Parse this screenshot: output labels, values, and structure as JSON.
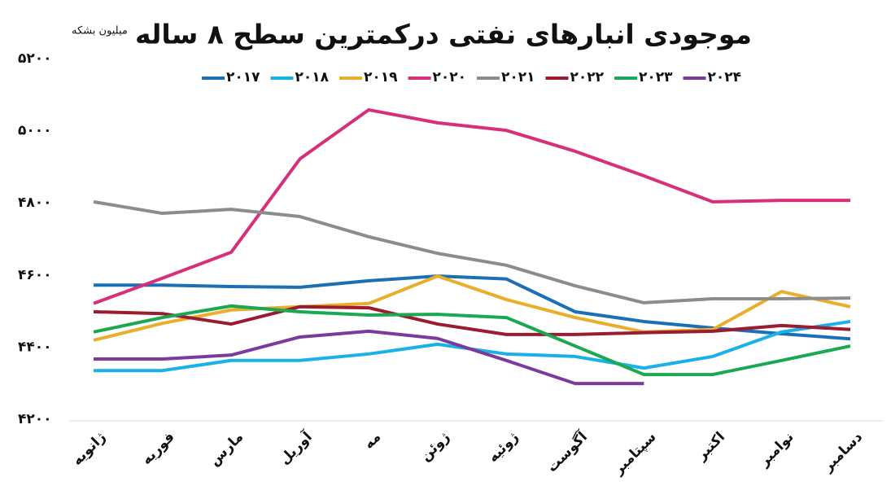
{
  "chart_data": {
    "type": "line",
    "title": "موجودی انبارهای نفتی درکمترین سطح ۸ ساله",
    "y_label": "میلیون بشکه",
    "categories": [
      "ژانویه",
      "فوریه",
      "مارس",
      "آوریل",
      "مه",
      "ژوئن",
      "ژوئیه",
      "آگوست",
      "سپتامبر",
      "اکتبر",
      "نوامبر",
      "دسامبر"
    ],
    "ylim": [
      4200,
      5200
    ],
    "yticks": [
      {
        "value": 4200,
        "label": "۴۲۰۰"
      },
      {
        "value": 4400,
        "label": "۴۴۰۰"
      },
      {
        "value": 4600,
        "label": "۴۶۰۰"
      },
      {
        "value": 4800,
        "label": "۴۸۰۰"
      },
      {
        "value": 5000,
        "label": "۵۰۰۰"
      },
      {
        "value": 5200,
        "label": "۵۲۰۰"
      }
    ],
    "grid": false,
    "legend": "top",
    "series": [
      {
        "name": "۲۰۱۷",
        "color": "#1a6fb5",
        "values": [
          4572,
          4572,
          4568,
          4566,
          4584,
          4597,
          4589,
          4498,
          4471,
          4453,
          4437,
          4423
        ]
      },
      {
        "name": "۲۰۱۸",
        "color": "#1ab0e8",
        "values": [
          4335,
          4335,
          4363,
          4363,
          4381,
          4408,
          4381,
          4374,
          4342,
          4374,
          4442,
          4471
        ]
      },
      {
        "name": "۲۰۱۹",
        "color": "#e9ae2a",
        "values": [
          4419,
          4466,
          4503,
          4512,
          4521,
          4597,
          4532,
          4482,
          4442,
          4449,
          4554,
          4512
        ]
      },
      {
        "name": "۲۰۲۰",
        "color": "#d6307b",
        "values": [
          4521,
          4591,
          4663,
          4922,
          5058,
          5022,
          5001,
          4943,
          4875,
          4803,
          4807,
          4807
        ]
      },
      {
        "name": "۲۰۲۱",
        "color": "#8c8c8c",
        "values": [
          4803,
          4771,
          4782,
          4762,
          4706,
          4660,
          4627,
          4570,
          4523,
          4534,
          4534,
          4536
        ]
      },
      {
        "name": "۲۰۲۲",
        "color": "#9b1b30",
        "values": [
          4498,
          4493,
          4464,
          4512,
          4509,
          4464,
          4435,
          4435,
          4440,
          4444,
          4460,
          4449
        ]
      },
      {
        "name": "۲۰۲۳",
        "color": "#1aa853",
        "values": [
          4442,
          4482,
          4514,
          4498,
          4489,
          4491,
          4482,
          4403,
          4324,
          4324,
          4363,
          4403
        ]
      },
      {
        "name": "۲۰۲۴",
        "color": "#7b3a9c",
        "values": [
          4367,
          4367,
          4378,
          4428,
          4444,
          4424,
          4363,
          4299,
          4299,
          null,
          null,
          null
        ]
      }
    ]
  }
}
